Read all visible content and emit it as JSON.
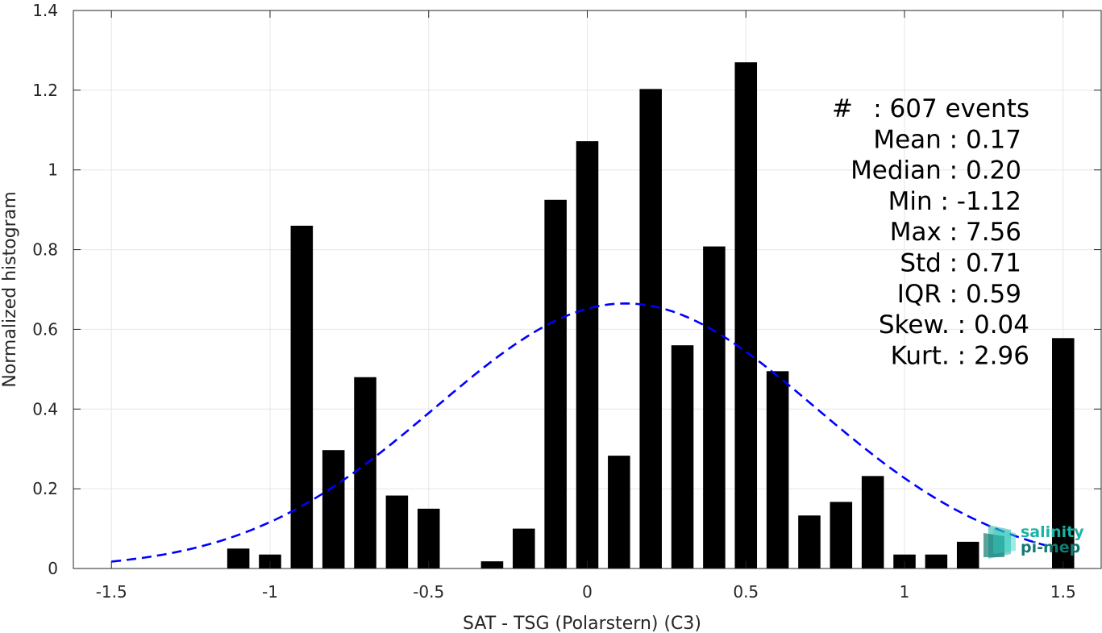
{
  "chart_data": {
    "type": "bar",
    "xlabel": "SAT - TSG (Polarstern) (C3)",
    "ylabel": "Normalized histogram",
    "xlim": [
      -1.62,
      1.62
    ],
    "ylim": [
      0,
      1.4
    ],
    "grid": true,
    "xticks": [
      -1.5,
      -1,
      -0.5,
      0,
      0.5,
      1,
      1.5
    ],
    "xtick_labels": [
      "-1.5",
      "-1",
      "-0.5",
      "0",
      "0.5",
      "1",
      "1.5"
    ],
    "yticks": [
      0,
      0.2,
      0.4,
      0.6,
      0.8,
      1,
      1.2,
      1.4
    ],
    "ytick_labels": [
      "0",
      "0.2",
      "0.4",
      "0.6",
      "0.8",
      "1",
      "1.2",
      "1.4"
    ],
    "bar_width": 0.07,
    "bars": {
      "x": [
        -1.1,
        -1.0,
        -0.9,
        -0.8,
        -0.7,
        -0.6,
        -0.5,
        -0.3,
        -0.2,
        -0.1,
        0.0,
        0.1,
        0.2,
        0.3,
        0.4,
        0.5,
        0.6,
        0.7,
        0.8,
        0.9,
        1.0,
        1.1,
        1.2,
        1.5
      ],
      "values": [
        0.05,
        0.035,
        0.86,
        0.297,
        0.48,
        0.183,
        0.15,
        0.018,
        0.1,
        0.925,
        1.072,
        0.283,
        1.203,
        0.56,
        0.808,
        1.27,
        0.495,
        0.133,
        0.167,
        0.232,
        0.035,
        0.035,
        0.067,
        0.578
      ],
      "color": "#000000"
    },
    "fit_curve": {
      "style": "dashed",
      "color": "#0000ff",
      "mean": 0.12,
      "std": 0.6,
      "peak": 0.665,
      "x_range": [
        -1.5,
        1.45
      ]
    },
    "stats": [
      {
        "label": "#",
        "sep": ":",
        "value": "607 events"
      },
      {
        "label": "Mean",
        "sep": ":",
        "value": "0.17"
      },
      {
        "label": "Median",
        "sep": ":",
        "value": "0.20"
      },
      {
        "label": "Min",
        "sep": ":",
        "value": "-1.12"
      },
      {
        "label": "Max",
        "sep": ":",
        "value": "7.56"
      },
      {
        "label": "Std",
        "sep": ":",
        "value": "0.71"
      },
      {
        "label": "IQR",
        "sep": ":",
        "value": "0.59"
      },
      {
        "label": "Skew.",
        "sep": ":",
        "value": "0.04"
      },
      {
        "label": "Kurt.",
        "sep": ":",
        "value": "2.96"
      }
    ]
  },
  "logo": {
    "line1": "salinity",
    "line2": "pi-mep",
    "color_primary": "#1ab3a6",
    "color_secondary": "#137a73"
  }
}
